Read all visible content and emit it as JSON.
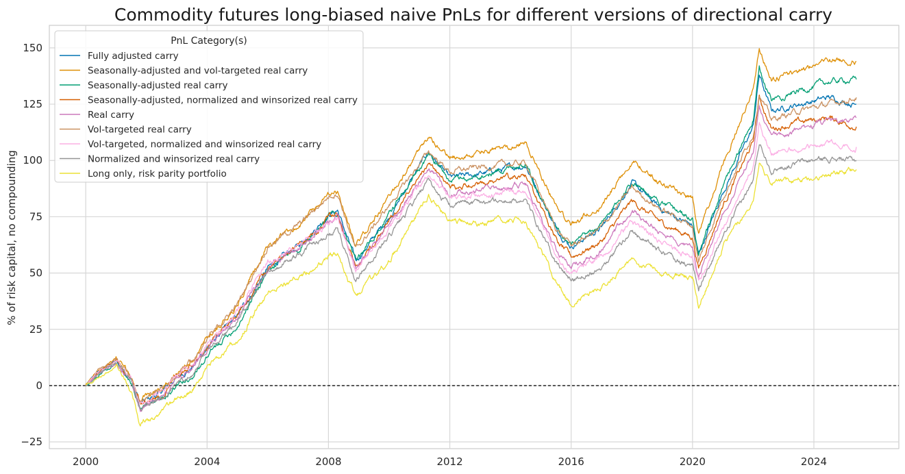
{
  "chart_data": {
    "type": "line",
    "title": "Commodity futures long-biased naive PnLs for different versions of directional carry",
    "xlabel": "",
    "ylabel": "% of risk capital, no compounding",
    "xlim": [
      1998.8,
      2026.8
    ],
    "ylim": [
      -28,
      160
    ],
    "x_ticks": [
      2000,
      2004,
      2008,
      2012,
      2016,
      2020,
      2024
    ],
    "x_tick_labels": [
      "2000",
      "2004",
      "2008",
      "2012",
      "2016",
      "2020",
      "2024"
    ],
    "y_ticks": [
      -25,
      0,
      25,
      50,
      75,
      100,
      125,
      150
    ],
    "y_tick_labels": [
      "−25",
      "0",
      "25",
      "50",
      "75",
      "100",
      "125",
      "150"
    ],
    "grid": true,
    "zero_line": true,
    "legend": {
      "title": "PnL Category(s)",
      "position": "top-left"
    },
    "anchor_x": [
      2000.0,
      2000.4,
      2001.0,
      2001.5,
      2001.8,
      2002.5,
      2003.0,
      2003.5,
      2004.0,
      2005.0,
      2006.0,
      2007.0,
      2008.0,
      2008.3,
      2008.9,
      2010.0,
      2011.3,
      2012.0,
      2013.0,
      2014.5,
      2015.5,
      2016.0,
      2017.0,
      2018.0,
      2019.0,
      2020.0,
      2020.2,
      2021.0,
      2022.0,
      2022.2,
      2022.6,
      2023.5,
      2024.5,
      2025.4
    ],
    "series": [
      {
        "name": "Fully adjusted carry",
        "color": "#0173b2",
        "values": [
          0,
          6,
          11,
          3,
          -8,
          -3,
          4,
          8,
          17,
          31,
          52,
          62,
          76,
          78,
          55,
          75,
          104,
          92,
          94,
          98,
          70,
          62,
          70,
          90,
          78,
          71,
          58,
          86,
          115,
          138,
          122,
          125,
          128,
          125
        ]
      },
      {
        "name": "Seasonally-adjusted and vol-targeted real carry",
        "color": "#de8f05",
        "values": [
          0,
          7,
          12,
          4,
          -7,
          -1,
          6,
          11,
          21,
          36,
          62,
          71,
          84,
          86,
          62,
          84,
          110,
          101,
          103,
          108,
          80,
          71,
          80,
          100,
          90,
          83,
          67,
          98,
          132,
          150,
          135,
          140,
          145,
          144
        ]
      },
      {
        "name": "Seasonally-adjusted real carry",
        "color": "#029e73",
        "values": [
          0,
          4,
          10,
          1,
          -10,
          -6,
          0,
          4,
          13,
          27,
          51,
          61,
          75,
          77,
          55,
          76,
          103,
          91,
          93,
          99,
          70,
          62,
          71,
          91,
          81,
          74,
          57,
          88,
          118,
          140,
          127,
          131,
          135,
          136
        ]
      },
      {
        "name": "Seasonally-adjusted, normalized and winsorized real carry",
        "color": "#d55e00",
        "values": [
          0,
          6,
          11,
          3,
          -8,
          -3,
          5,
          9,
          18,
          31,
          53,
          62,
          74,
          76,
          53,
          73,
          99,
          88,
          90,
          93,
          65,
          57,
          64,
          82,
          72,
          66,
          52,
          80,
          108,
          128,
          114,
          117,
          119,
          115
        ]
      },
      {
        "name": "Real carry",
        "color": "#cc78bc",
        "values": [
          0,
          5,
          10,
          2,
          -10,
          -5,
          3,
          7,
          16,
          30,
          53,
          61,
          73,
          75,
          52,
          71,
          96,
          85,
          87,
          89,
          60,
          53,
          60,
          78,
          68,
          62,
          48,
          76,
          104,
          124,
          110,
          114,
          117,
          119
        ]
      },
      {
        "name": "Vol-targeted real carry",
        "color": "#ca9161",
        "values": [
          0,
          7,
          12,
          4,
          -7,
          -1,
          6,
          11,
          21,
          36,
          62,
          71,
          84,
          86,
          60,
          80,
          104,
          95,
          97,
          99,
          70,
          62,
          70,
          88,
          78,
          71,
          55,
          84,
          112,
          130,
          118,
          122,
          125,
          128
        ]
      },
      {
        "name": "Vol-targeted, normalized and winsorized real carry",
        "color": "#fbafe4",
        "values": [
          0,
          6,
          11,
          3,
          -8,
          -3,
          5,
          9,
          18,
          32,
          55,
          62,
          72,
          74,
          52,
          70,
          94,
          84,
          85,
          86,
          58,
          50,
          57,
          73,
          63,
          57,
          45,
          70,
          97,
          115,
          103,
          106,
          108,
          106
        ]
      },
      {
        "name": "Normalized and winsorized real carry",
        "color": "#949494",
        "values": [
          0,
          5,
          10,
          2,
          -10,
          -6,
          2,
          6,
          15,
          28,
          51,
          58,
          68,
          70,
          47,
          66,
          90,
          80,
          82,
          82,
          54,
          47,
          53,
          69,
          59,
          53,
          42,
          66,
          91,
          108,
          96,
          99,
          101,
          100
        ]
      },
      {
        "name": "Long only, risk parity portfolio",
        "color": "#ece133",
        "values": [
          0,
          3,
          8,
          -2,
          -17,
          -12,
          -6,
          -2,
          8,
          20,
          42,
          48,
          57,
          58,
          40,
          55,
          85,
          73,
          72,
          74,
          46,
          36,
          44,
          56,
          50,
          48,
          35,
          62,
          82,
          100,
          90,
          92,
          93,
          96
        ]
      }
    ]
  }
}
